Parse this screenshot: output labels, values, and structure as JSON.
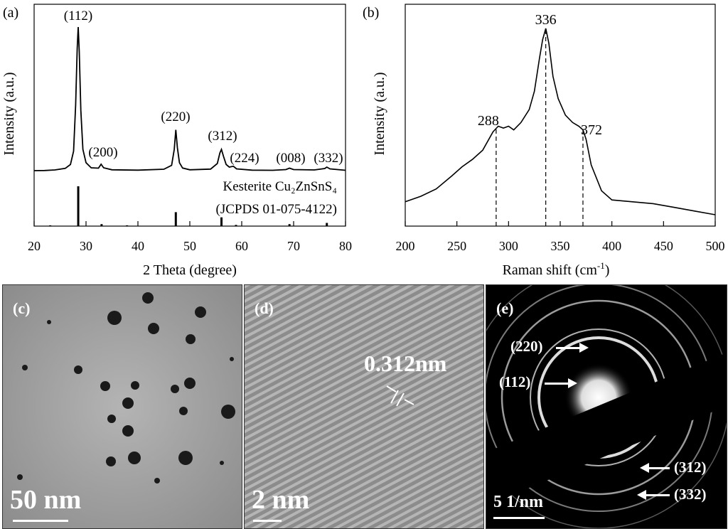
{
  "chart_data": [
    {
      "type": "line",
      "panel_label": "(a)",
      "xlabel": "2 Theta (degree)",
      "ylabel": "Intensity (a.u.)",
      "xlim": [
        20,
        80
      ],
      "xticks": [
        "20",
        "30",
        "40",
        "50",
        "60",
        "70",
        "80"
      ],
      "series": [
        {
          "x": [
            20,
            22,
            24,
            26,
            27,
            27.6,
            28.0,
            28.3,
            28.5,
            28.7,
            29.0,
            29.4,
            30,
            31,
            32.4,
            32.9,
            33.4,
            35,
            40,
            45,
            46.5,
            47.0,
            47.3,
            47.6,
            48.0,
            48.6,
            50,
            54,
            55.3,
            55.8,
            56.1,
            56.5,
            57.0,
            57.6,
            58.4,
            59,
            62,
            66,
            68.5,
            69.2,
            70,
            74,
            76.0,
            76.4,
            77,
            80
          ],
          "y": [
            1.0,
            1.1,
            1.4,
            2.3,
            4.5,
            12,
            38,
            70,
            82,
            68,
            35,
            13,
            5.5,
            2.6,
            2.4,
            4.6,
            2.6,
            1.5,
            1.3,
            1.8,
            4,
            13,
            24,
            14,
            5.5,
            2.5,
            1.5,
            1.9,
            5,
            11,
            13,
            9,
            4.5,
            3,
            3.5,
            2,
            1.3,
            1.2,
            1.6,
            2.4,
            1.6,
            1.4,
            2.2,
            3,
            2,
            1.2
          ]
        }
      ],
      "peak_labels": [
        {
          "text": "(112)",
          "x": 28.5
        },
        {
          "text": "(200)",
          "x": 33.0
        },
        {
          "text": "(220)",
          "x": 47.3
        },
        {
          "text": "(312)",
          "x": 56.1
        },
        {
          "text": "(224)",
          "x": 58.5
        },
        {
          "text": "(008)",
          "x": 69.2
        },
        {
          "text": "(332)",
          "x": 76.4
        }
      ],
      "reference": {
        "name": "Kesterite Cu₂ZnSnS₄",
        "card": "(JCPDS 01-075-4122)",
        "lines": [
          {
            "x": 28.5,
            "h": 100
          },
          {
            "x": 33.0,
            "h": 5
          },
          {
            "x": 47.3,
            "h": 35
          },
          {
            "x": 56.1,
            "h": 22
          },
          {
            "x": 58.9,
            "h": 3
          },
          {
            "x": 69.2,
            "h": 5
          },
          {
            "x": 76.4,
            "h": 8
          },
          {
            "x": 23.1,
            "h": 2
          },
          {
            "x": 37.9,
            "h": 2
          }
        ]
      }
    },
    {
      "type": "line",
      "panel_label": "(b)",
      "xlabel": "Raman shift (cm",
      "xlabel_sup": "-1",
      "xlabel_end": ")",
      "ylabel": "Intensity (a.u.)",
      "xlim": [
        200,
        500
      ],
      "xticks": [
        "200",
        "250",
        "300",
        "350",
        "400",
        "450",
        "500"
      ],
      "series": [
        {
          "x": [
            200,
            215,
            230,
            245,
            255,
            265,
            275,
            285,
            290,
            295,
            300,
            305,
            312,
            320,
            325,
            330,
            333,
            336,
            339,
            343,
            348,
            355,
            362,
            368,
            372,
            375,
            380,
            390,
            400,
            420,
            440,
            460,
            480,
            500
          ],
          "y": [
            8,
            11,
            15,
            22,
            27,
            31,
            36,
            46,
            49,
            48,
            49,
            47,
            51,
            58,
            68,
            86,
            96,
            102,
            94,
            76,
            64,
            55,
            51,
            49,
            47,
            42,
            28,
            14,
            9,
            8,
            7,
            5,
            3,
            1
          ]
        }
      ],
      "peaks": [
        {
          "text": "288",
          "x": 288
        },
        {
          "text": "336",
          "x": 336
        },
        {
          "text": "372",
          "x": 372
        }
      ]
    }
  ],
  "panels": {
    "c": {
      "label": "(c)",
      "scale": "50 nm"
    },
    "d": {
      "label": "(d)",
      "scale": "2 nm",
      "spacing": "0.312nm"
    },
    "e": {
      "label": "(e)",
      "scale": "5 1/nm",
      "rings": [
        "(220)",
        "(112)",
        "(312)",
        "(332)"
      ]
    }
  },
  "colors": {
    "line": "#000000",
    "annotation": "#ffffff"
  }
}
